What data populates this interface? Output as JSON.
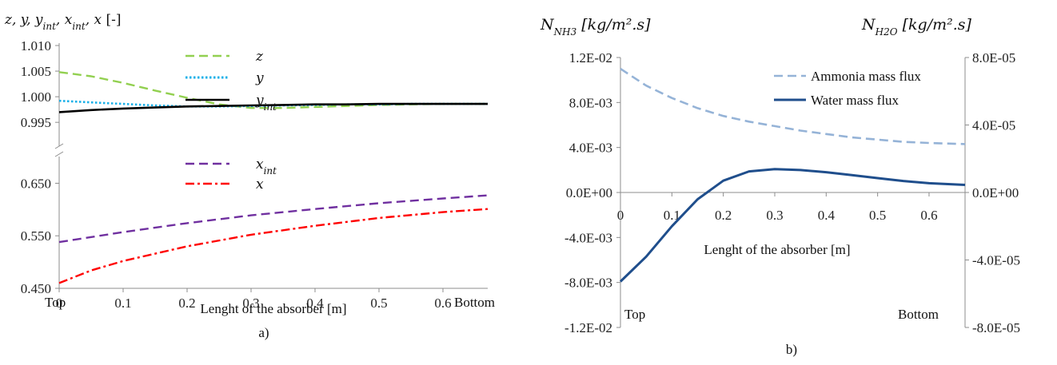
{
  "chart_data": [
    {
      "type": "line",
      "panel_label": "a)",
      "y_axis_title": "z, y, y_int, x_int, x [-]",
      "y_axis_title_unit": "[-]",
      "xlabel": "Lenght of the absorber  [m]",
      "x_end_labels": {
        "left": "Top",
        "right": "Bottom"
      },
      "xlim": [
        0,
        0.67
      ],
      "x_ticks": [
        "0",
        "0.1",
        "0.2",
        "0.3",
        "0.4",
        "0.5",
        "0.6"
      ],
      "axis_break": true,
      "upper_ylim": [
        0.993,
        1.01
      ],
      "upper_y_ticks": [
        "1.010",
        "1.005",
        "1.000",
        "0.995"
      ],
      "lower_ylim": [
        0.45,
        0.675
      ],
      "lower_y_ticks": [
        "0.650",
        "0.550",
        "0.450"
      ],
      "grid": false,
      "legend_placement": "inside-center",
      "series": [
        {
          "name": "z",
          "legend_main": "z",
          "legend_sub": "",
          "axis": "upper",
          "style": "dashed",
          "color": "#92d050",
          "x": [
            0,
            0.05,
            0.1,
            0.15,
            0.2,
            0.25,
            0.3,
            0.35,
            0.4,
            0.45,
            0.5,
            0.55,
            0.6,
            0.67
          ],
          "y": [
            1.0048,
            1.004,
            1.0027,
            1.0012,
            0.9998,
            0.9985,
            0.9978,
            0.9978,
            0.998,
            0.9982,
            0.9984,
            0.9985,
            0.9986,
            0.9986
          ]
        },
        {
          "name": "y",
          "legend_main": "y",
          "legend_sub": "",
          "axis": "upper",
          "style": "dotted",
          "color": "#1ab0e8",
          "x": [
            0,
            0.05,
            0.1,
            0.15,
            0.2,
            0.25,
            0.3,
            0.35,
            0.4,
            0.45,
            0.5,
            0.55,
            0.6,
            0.67
          ],
          "y": [
            0.9992,
            0.9989,
            0.9986,
            0.9983,
            0.9981,
            0.9981,
            0.9982,
            0.9983,
            0.9984,
            0.9985,
            0.9985,
            0.9986,
            0.9986,
            0.9986
          ]
        },
        {
          "name": "y_int",
          "legend_main": "y",
          "legend_sub": "int",
          "axis": "upper",
          "style": "solid",
          "color": "#000000",
          "x": [
            0,
            0.05,
            0.1,
            0.15,
            0.2,
            0.25,
            0.3,
            0.35,
            0.4,
            0.45,
            0.5,
            0.55,
            0.6,
            0.67
          ],
          "y": [
            0.997,
            0.9974,
            0.9977,
            0.9979,
            0.9981,
            0.9982,
            0.9983,
            0.9984,
            0.9985,
            0.9985,
            0.9986,
            0.9986,
            0.9986,
            0.9986
          ]
        },
        {
          "name": "x_int",
          "legend_main": "x",
          "legend_sub": "int",
          "axis": "lower",
          "style": "dashed",
          "color": "#7030a0",
          "x": [
            0,
            0.1,
            0.2,
            0.3,
            0.4,
            0.5,
            0.6,
            0.67
          ],
          "y": [
            0.538,
            0.557,
            0.574,
            0.589,
            0.601,
            0.612,
            0.621,
            0.627
          ]
        },
        {
          "name": "x",
          "legend_main": "x",
          "legend_sub": "",
          "axis": "lower",
          "style": "dashdot",
          "color": "#ff0000",
          "x": [
            0,
            0.05,
            0.1,
            0.2,
            0.3,
            0.4,
            0.5,
            0.6,
            0.67
          ],
          "y": [
            0.46,
            0.484,
            0.502,
            0.53,
            0.552,
            0.569,
            0.584,
            0.595,
            0.601
          ]
        }
      ]
    },
    {
      "type": "line",
      "panel_label": "b)",
      "left_axis_title_main": "N",
      "left_axis_title_sub": "NH3",
      "left_axis_title_unit": "[kg/m².s]",
      "right_axis_title_main": "N",
      "right_axis_title_sub": "H2O",
      "right_axis_title_unit": "[kg/m².s]",
      "xlabel": "Lenght  of the absorber [m]",
      "x_end_labels": {
        "left": "Top",
        "right": "Bottom"
      },
      "xlim": [
        0,
        0.67
      ],
      "x_ticks": [
        "0",
        "0.1",
        "0.2",
        "0.3",
        "0.4",
        "0.5",
        "0.6"
      ],
      "ylim_left": [
        -0.012,
        0.012
      ],
      "left_ticks": [
        "1.2E-02",
        "8.0E-03",
        "4.0E-03",
        "0.0E+00",
        "-4.0E-03",
        "-8.0E-03",
        "-1.2E-02"
      ],
      "ylim_right": [
        -8e-05,
        8e-05
      ],
      "right_ticks": [
        "8.0E-05",
        "4.0E-05",
        "0.0E+00",
        "-4.0E-05",
        "-8.0E-05"
      ],
      "grid": false,
      "legend_placement": "top-right",
      "series": [
        {
          "name": "Ammonia mass flux",
          "axis": "left",
          "style": "dashed",
          "color": "#95b3d7",
          "x": [
            0,
            0.05,
            0.1,
            0.15,
            0.2,
            0.25,
            0.3,
            0.35,
            0.4,
            0.45,
            0.5,
            0.55,
            0.6,
            0.67
          ],
          "y": [
            0.011,
            0.0095,
            0.0084,
            0.0075,
            0.0068,
            0.0063,
            0.0059,
            0.0055,
            0.0052,
            0.0049,
            0.0047,
            0.0045,
            0.0044,
            0.0043
          ]
        },
        {
          "name": "Water mass flux",
          "axis": "right",
          "style": "solid",
          "color": "#1f4e8c",
          "x": [
            0,
            0.05,
            0.1,
            0.15,
            0.2,
            0.25,
            0.3,
            0.35,
            0.4,
            0.45,
            0.5,
            0.55,
            0.6,
            0.67
          ],
          "y": [
            -5.28e-05,
            -3.8e-05,
            -2e-05,
            -4e-06,
            7e-06,
            1.25e-05,
            1.38e-05,
            1.33e-05,
            1.2e-05,
            1.03e-05,
            8.5e-06,
            6.8e-06,
            5.5e-06,
            4.5e-06
          ]
        }
      ]
    }
  ]
}
